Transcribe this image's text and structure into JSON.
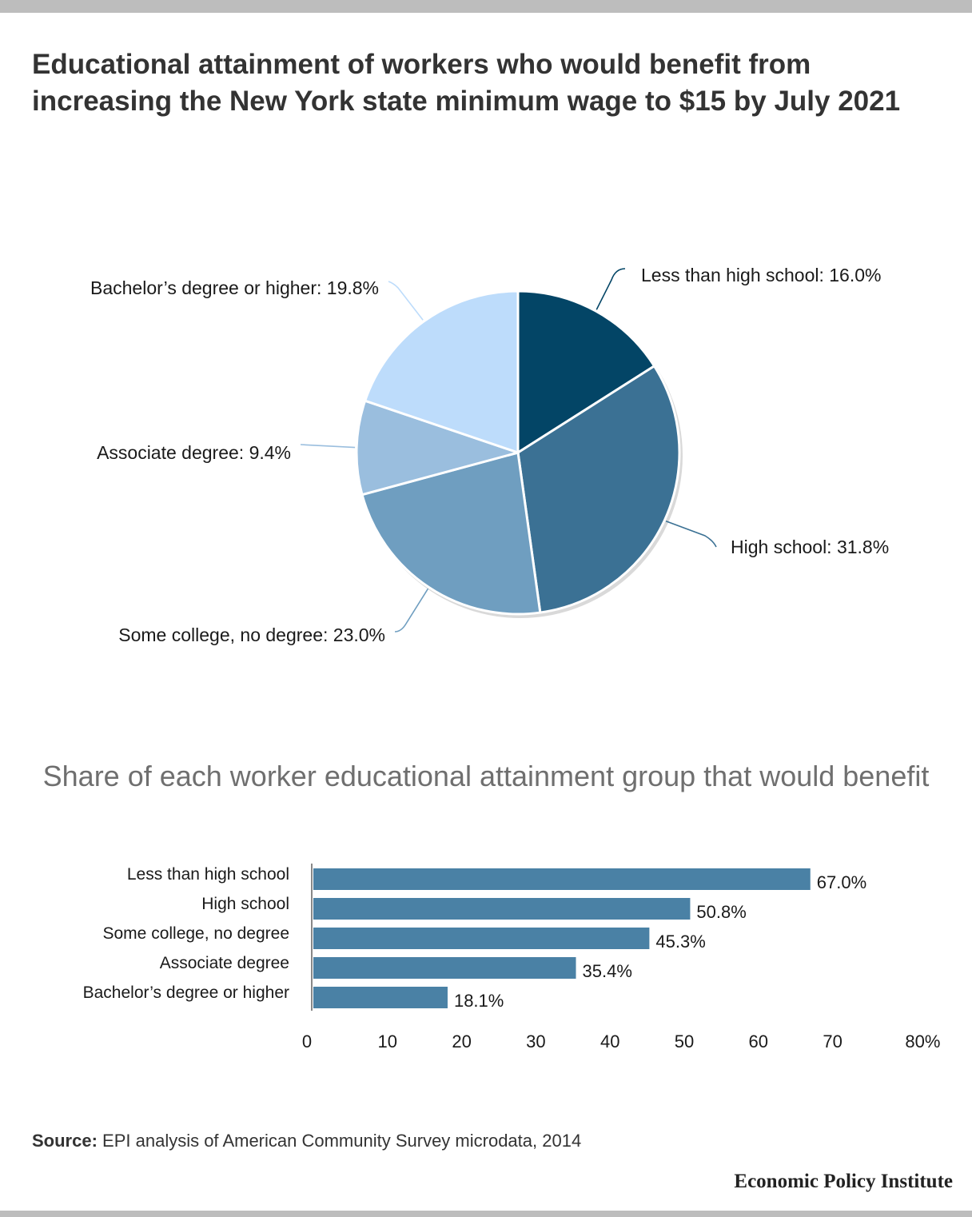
{
  "title": "Educational attainment of workers who would benefit from increasing the New York state minimum wage to $15 by July 2021",
  "chart_data": [
    {
      "type": "pie",
      "title": "",
      "slices": [
        {
          "label": "Less than high school: 16.0%",
          "name": "Less than high school",
          "value": 16.0,
          "color": "#034566"
        },
        {
          "label": "High school: 31.8%",
          "name": "High school",
          "value": 31.8,
          "color": "#3b7194"
        },
        {
          "label": "Some college, no degree: 23.0%",
          "name": "Some college, no degree",
          "value": 23.0,
          "color": "#6f9ec0"
        },
        {
          "label": "Associate degree: 9.4%",
          "name": "Associate degree",
          "value": 9.4,
          "color": "#9abede"
        },
        {
          "label": "Bachelor’s degree or higher: 19.8%",
          "name": "Bachelor’s degree or higher",
          "value": 19.8,
          "color": "#bddcfb"
        }
      ]
    },
    {
      "type": "bar",
      "orientation": "horizontal",
      "title": "Share of each worker educational attainment group that would benefit",
      "categories": [
        "Less than high school",
        "High school",
        "Some college, no degree",
        "Associate degree",
        "Bachelor’s degree or higher"
      ],
      "values": [
        67.0,
        50.8,
        45.3,
        35.4,
        18.1
      ],
      "value_labels": [
        "67.0%",
        "50.8%",
        "45.3%",
        "35.4%",
        "18.1%"
      ],
      "xlim": [
        0,
        80
      ],
      "ticks": [
        0,
        10,
        20,
        30,
        40,
        50,
        60,
        70,
        80
      ],
      "tick_labels": [
        "0",
        "10",
        "20",
        "30",
        "40",
        "50",
        "60",
        "70",
        "80%"
      ],
      "bar_color": "#4a81a5",
      "grid": false
    }
  ],
  "source": {
    "prefix": "Source:",
    "text": " EPI analysis of American Community Survey microdata, 2014"
  },
  "brand": "Economic Policy Institute"
}
